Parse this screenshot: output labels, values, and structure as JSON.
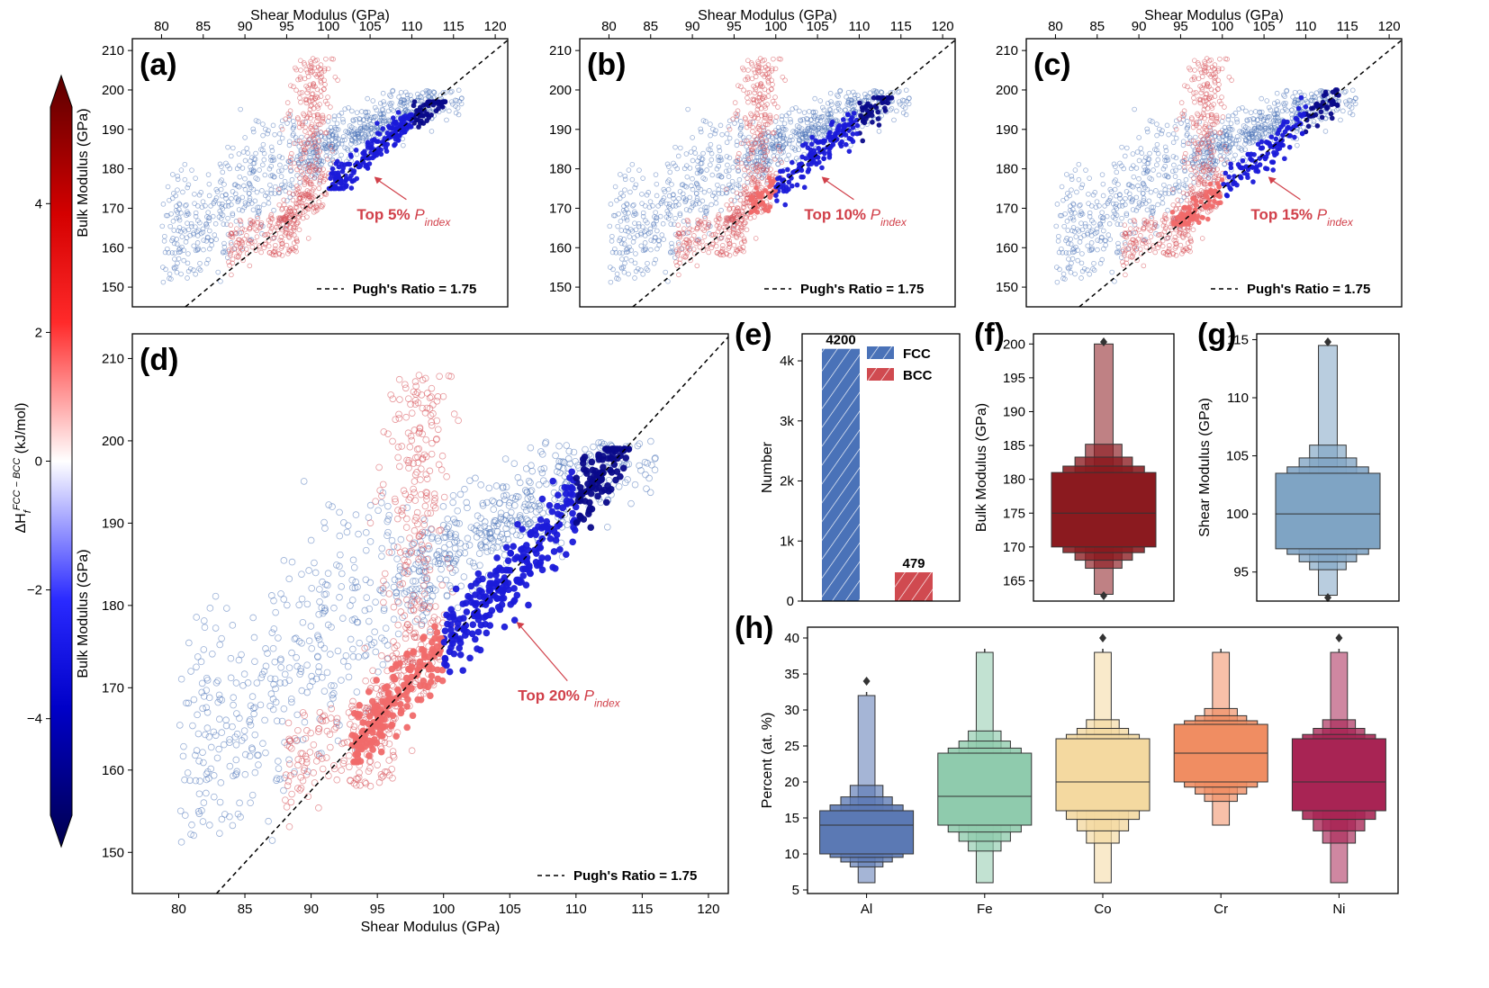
{
  "colors": {
    "fcc_points": "#4a72b8",
    "bcc_points": "#d9575e",
    "top_points": "#1a1ad9",
    "annotation": "#d1404a",
    "bar_fcc": "#4a72b8",
    "bar_bcc": "#d04a50",
    "box_bulk": "#8b1a1f",
    "box_shear": "#7fa4c4",
    "box_elements": [
      "#5b79b4",
      "#8fcbad",
      "#f4d9a0",
      "#f08d62",
      "#a82454"
    ]
  },
  "colorbar": {
    "label": "ΔH_f^{FCC−BCC} (kJ/mol)",
    "ticks": [
      "4",
      "2",
      "0",
      "−2",
      "−4"
    ],
    "tick_values": [
      4,
      2,
      0,
      -2,
      -4
    ],
    "range": [
      -5.5,
      5.5
    ]
  },
  "scatter_panels": [
    {
      "panel_label": "(a)",
      "xlabel": "Shear Modulus (GPa)",
      "ylabel": "Bulk Modulus (GPa)",
      "xticks": [
        "80",
        "85",
        "90",
        "95",
        "100",
        "105",
        "110",
        "115",
        "120"
      ],
      "yticks": [
        "150",
        "160",
        "170",
        "180",
        "190",
        "200",
        "210"
      ],
      "annotation_prefix": "Top 5% ",
      "annotation_sub": "index",
      "legend": "Pugh's Ratio = 1.75"
    },
    {
      "panel_label": "(b)",
      "xlabel": "Shear Modulus (GPa)",
      "ylabel": "",
      "xticks": [
        "80",
        "85",
        "90",
        "95",
        "100",
        "105",
        "110",
        "115",
        "120"
      ],
      "yticks": [
        "150",
        "160",
        "170",
        "180",
        "190",
        "200",
        "210"
      ],
      "annotation_prefix": "Top 10% ",
      "annotation_sub": "index",
      "legend": "Pugh's Ratio = 1.75"
    },
    {
      "panel_label": "(c)",
      "xlabel": "Shear Modulus (GPa)",
      "ylabel": "",
      "xticks": [
        "80",
        "85",
        "90",
        "95",
        "100",
        "105",
        "110",
        "115",
        "120"
      ],
      "yticks": [
        "150",
        "160",
        "170",
        "180",
        "190",
        "200",
        "210"
      ],
      "annotation_prefix": "Top 15% ",
      "annotation_sub": "index",
      "legend": "Pugh's Ratio = 1.75"
    },
    {
      "panel_label": "(d)",
      "xlabel": "Shear Modulus (GPa)",
      "ylabel": "Bulk Modulus (GPa)",
      "xticks": [
        "80",
        "85",
        "90",
        "95",
        "100",
        "105",
        "110",
        "115",
        "120"
      ],
      "yticks": [
        "150",
        "160",
        "170",
        "180",
        "190",
        "200",
        "210"
      ],
      "annotation_prefix": "Top 20% ",
      "annotation_sub": "index",
      "legend": "Pugh's Ratio = 1.75"
    }
  ],
  "chart_data": [
    {
      "type": "scatter",
      "panel": "(a)",
      "xlim": [
        76.5,
        121.5
      ],
      "ylim": [
        145,
        213
      ],
      "pugh_ratio": 1.75,
      "reference_line": "B = 1.75 × G",
      "top_percent": 5,
      "top_region": {
        "G": [
          100,
          114
        ],
        "B": [
          175,
          197
        ]
      },
      "annotation_target": {
        "G": 105.5,
        "B": 178
      }
    },
    {
      "type": "scatter",
      "panel": "(b)",
      "xlim": [
        76.5,
        121.5
      ],
      "ylim": [
        145,
        213
      ],
      "pugh_ratio": 1.75,
      "reference_line": "B = 1.75 × G",
      "top_percent": 10,
      "top_region": {
        "G": [
          97,
          114
        ],
        "B": [
          169,
          198
        ]
      },
      "annotation_target": {
        "G": 105.5,
        "B": 178
      }
    },
    {
      "type": "scatter",
      "panel": "(c)",
      "xlim": [
        76.5,
        121.5
      ],
      "ylim": [
        145,
        213
      ],
      "pugh_ratio": 1.75,
      "reference_line": "B = 1.75 × G",
      "top_percent": 15,
      "top_region": {
        "G": [
          94,
          114
        ],
        "B": [
          166,
          200
        ]
      },
      "annotation_target": {
        "G": 105.5,
        "B": 178
      }
    },
    {
      "type": "scatter",
      "panel": "(d)",
      "xlim": [
        76.5,
        121.5
      ],
      "ylim": [
        145,
        213
      ],
      "pugh_ratio": 1.75,
      "reference_line": "B = 1.75 × G",
      "top_percent": 20,
      "top_region": {
        "G": [
          93,
          114
        ],
        "B": [
          161,
          199
        ]
      },
      "annotation_target": {
        "G": 105.5,
        "B": 178
      }
    },
    {
      "type": "bar",
      "panel": "(e)",
      "categories": [
        "FCC",
        "BCC"
      ],
      "values": [
        4200,
        479
      ],
      "value_labels": [
        "4200",
        "479"
      ],
      "ylabel": "Number",
      "yticks": [
        "0",
        "1k",
        "2k",
        "3k",
        "4k"
      ],
      "ytick_values": [
        0,
        1000,
        2000,
        3000,
        4000
      ],
      "ylim": [
        0,
        4450
      ],
      "legend": [
        "FCC",
        "BCC"
      ],
      "panel_label": "(e)"
    },
    {
      "type": "boxen",
      "panel": "(f)",
      "ylabel": "Bulk Modulus (GPa)",
      "yticks": [
        "165",
        "170",
        "175",
        "180",
        "185",
        "190",
        "195",
        "200"
      ],
      "ytick_values": [
        165,
        170,
        175,
        180,
        185,
        190,
        195,
        200
      ],
      "ylim": [
        162,
        201.5
      ],
      "median": 175,
      "q1": 170,
      "q3": 181,
      "min": 163,
      "max": 200,
      "panel_label": "(f)"
    },
    {
      "type": "boxen",
      "panel": "(g)",
      "ylabel": "Shear Modulus (GPa)",
      "yticks": [
        "95",
        "100",
        "105",
        "110",
        "115"
      ],
      "ytick_values": [
        95,
        100,
        105,
        110,
        115
      ],
      "ylim": [
        92.5,
        115.5
      ],
      "median": 100,
      "q1": 97,
      "q3": 103.5,
      "min": 93,
      "max": 114.5,
      "panel_label": "(g)"
    },
    {
      "type": "boxen",
      "panel": "(h)",
      "ylabel": "Percent (at. %)",
      "categories": [
        "Al",
        "Fe",
        "Co",
        "Cr",
        "Ni"
      ],
      "yticks": [
        "5",
        "10",
        "15",
        "20",
        "25",
        "30",
        "35",
        "40"
      ],
      "ytick_values": [
        5,
        10,
        15,
        20,
        25,
        30,
        35,
        40
      ],
      "ylim": [
        4.5,
        41.5
      ],
      "series": [
        {
          "name": "Al",
          "median": 14,
          "q1": 10,
          "q3": 16,
          "min": 6,
          "max": 32,
          "outliers": [
            34
          ]
        },
        {
          "name": "Fe",
          "median": 18,
          "q1": 14,
          "q3": 24,
          "min": 6,
          "max": 38,
          "outliers": []
        },
        {
          "name": "Co",
          "median": 20,
          "q1": 16,
          "q3": 26,
          "min": 6,
          "max": 38,
          "outliers": [
            40
          ]
        },
        {
          "name": "Cr",
          "median": 24,
          "q1": 20,
          "q3": 28,
          "min": 14,
          "max": 38,
          "outliers": []
        },
        {
          "name": "Ni",
          "median": 20,
          "q1": 16,
          "q3": 26,
          "min": 6,
          "max": 38,
          "outliers": [
            40
          ]
        }
      ],
      "panel_label": "(h)"
    }
  ]
}
